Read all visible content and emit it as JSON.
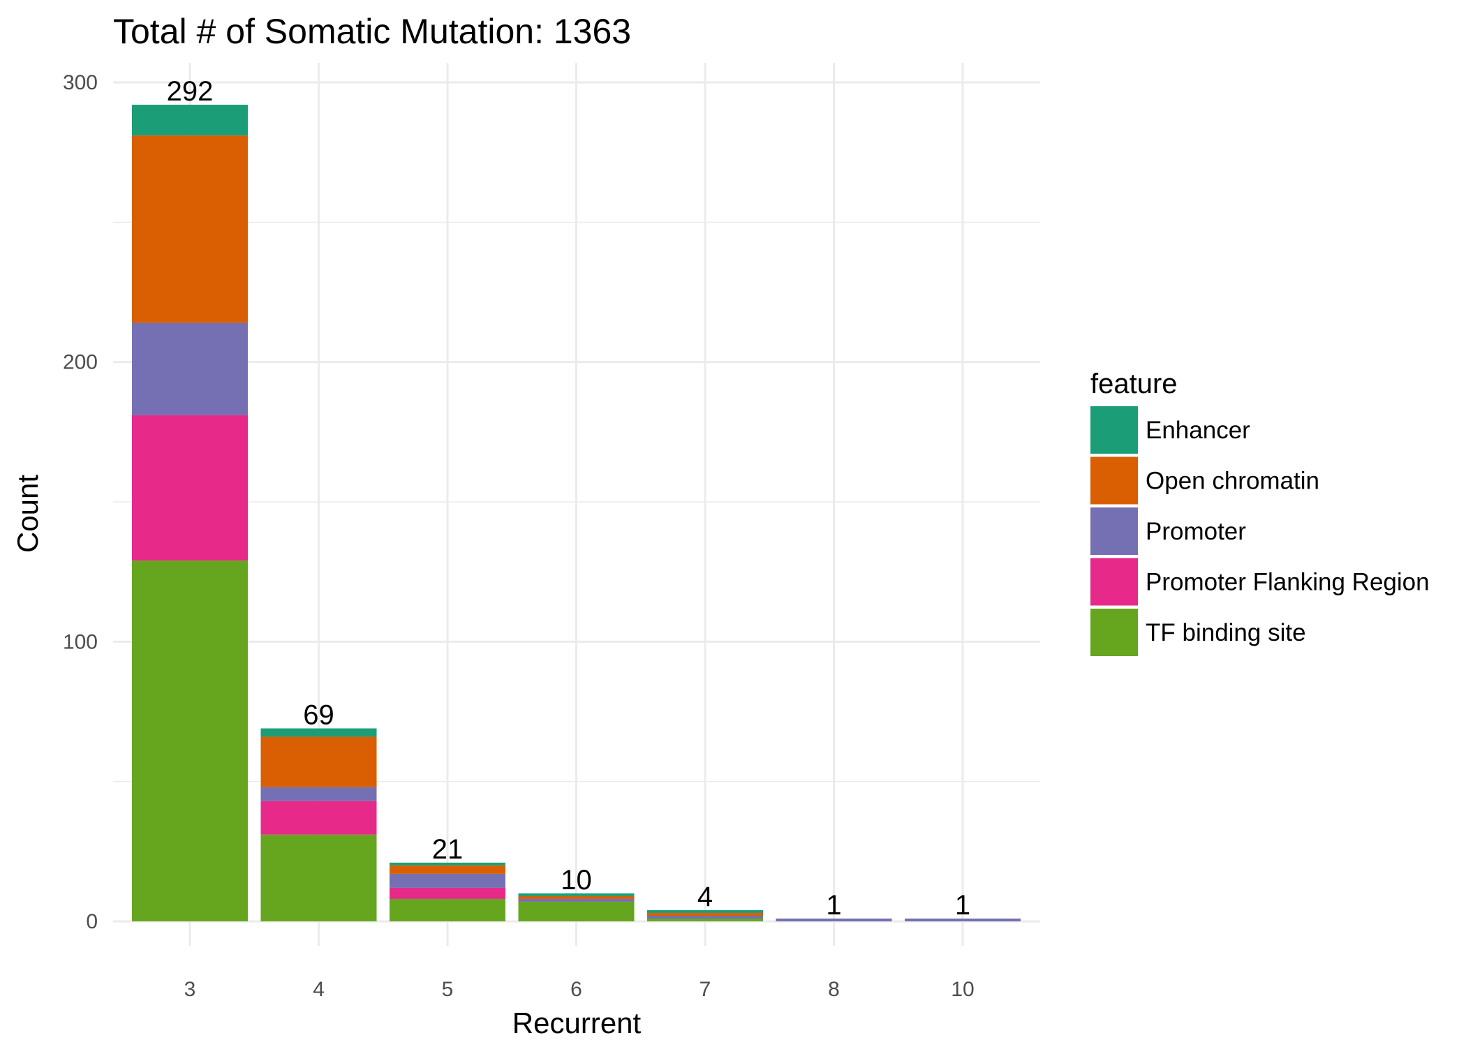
{
  "chart_data": {
    "type": "bar",
    "stacked": true,
    "title": "Total # of Somatic Mutation: 1363",
    "xlabel": "Recurrent",
    "ylabel": "Count",
    "ylim": [
      0,
      300
    ],
    "yticks": [
      "0",
      "100",
      "200",
      "300"
    ],
    "grid": true,
    "legend": {
      "title": "feature",
      "placement": "right"
    },
    "categories": [
      "3",
      "4",
      "5",
      "6",
      "7",
      "8",
      "10"
    ],
    "totals": [
      "292",
      "69",
      "21",
      "10",
      "4",
      "1",
      "1"
    ],
    "series": [
      {
        "name": "TF binding site",
        "color": "#66a61e",
        "values": [
          129,
          31,
          8,
          7,
          1,
          0,
          0
        ]
      },
      {
        "name": "Promoter Flanking Region",
        "color": "#e7298a",
        "values": [
          52,
          12,
          4,
          0,
          0,
          0,
          0
        ]
      },
      {
        "name": "Promoter",
        "color": "#7570b3",
        "values": [
          33,
          5,
          5,
          1,
          1,
          1,
          1
        ]
      },
      {
        "name": "Open chromatin",
        "color": "#d95f02",
        "values": [
          67,
          18,
          3,
          1,
          1,
          0,
          0
        ]
      },
      {
        "name": "Enhancer",
        "color": "#1b9e77",
        "values": [
          11,
          3,
          1,
          1,
          1,
          0,
          0
        ]
      }
    ],
    "legend_order": [
      "Enhancer",
      "Open chromatin",
      "Promoter",
      "Promoter Flanking Region",
      "TF binding site"
    ]
  }
}
